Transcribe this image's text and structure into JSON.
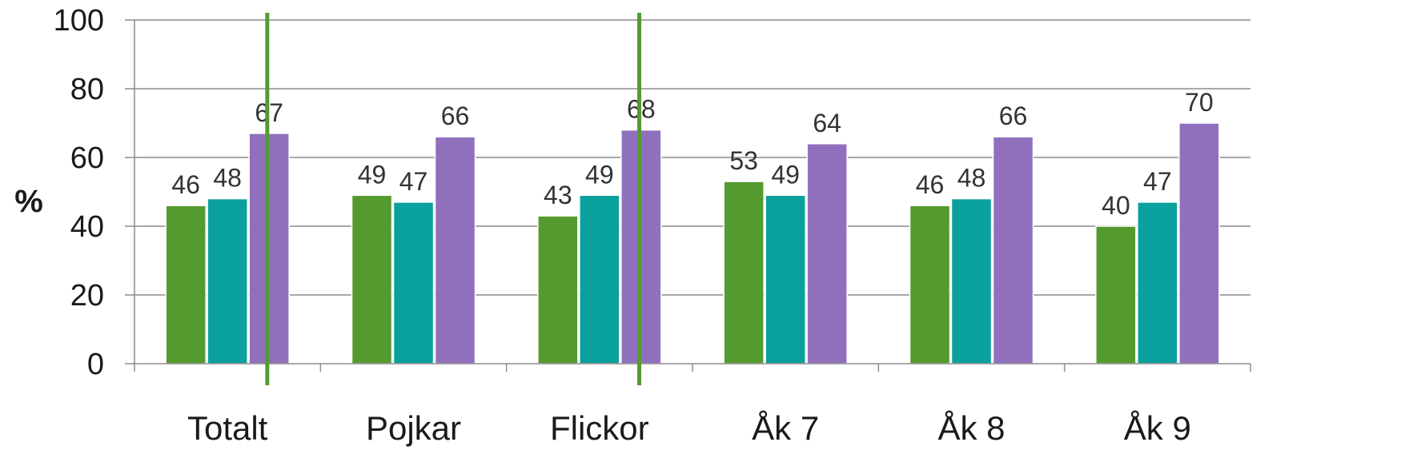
{
  "chart_data": {
    "type": "bar",
    "ylabel": "%",
    "ylim": [
      0,
      100
    ],
    "yticks": [
      "0",
      "20",
      "40",
      "60",
      "80",
      "100"
    ],
    "categories": [
      "Totalt",
      "Pojkar",
      "Flickor",
      "Åk 7",
      "Åk 8",
      "Åk 9"
    ],
    "series": [
      {
        "color": "#559a2f",
        "values": [
          46,
          49,
          43,
          53,
          46,
          40
        ]
      },
      {
        "color": "#0aa09d",
        "values": [
          48,
          47,
          49,
          49,
          48,
          47
        ]
      },
      {
        "color": "#9070bd",
        "values": [
          67,
          66,
          68,
          64,
          66,
          70
        ]
      }
    ],
    "separators_after_category_index": [
      0,
      2
    ],
    "separator_color": "#559a2f",
    "grid": true,
    "gridline_color": "#8c8c8c"
  }
}
